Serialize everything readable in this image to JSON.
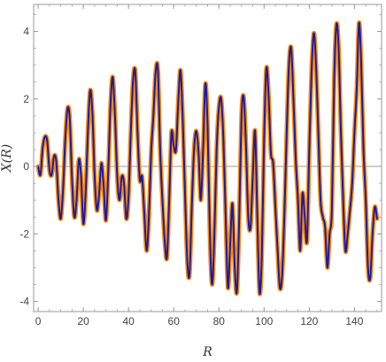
{
  "chart_data": {
    "type": "line",
    "xlabel": "R",
    "ylabel": "X(R)",
    "xlim": [
      -2,
      152
    ],
    "ylim": [
      -4.3,
      4.8
    ],
    "x_ticks": [
      0,
      20,
      40,
      60,
      80,
      100,
      120,
      140
    ],
    "y_ticks": [
      -4,
      -2,
      0,
      2,
      4
    ],
    "x_tick_labels": [
      "0",
      "20",
      "40",
      "60",
      "80",
      "100",
      "120",
      "140"
    ],
    "y_tick_labels": [
      "-4",
      "-2",
      "0",
      "2",
      "4"
    ],
    "x_minor_step": 5,
    "y_minor_step": 0.5,
    "grid": false,
    "frame": true,
    "zero_line": true,
    "colors": {
      "outer_series": "#ff8c00",
      "inner_series": "#1a1aa8",
      "axis": "#9a9a9a",
      "zero_line": "#7a7a7a"
    },
    "series": [
      {
        "color": "#ff8c00",
        "style": "thick",
        "points": [
          [
            0,
            0
          ],
          [
            1,
            -0.25
          ],
          [
            2,
            0.55
          ],
          [
            3,
            0.88
          ],
          [
            4,
            0.75
          ],
          [
            5,
            -0.1
          ],
          [
            6,
            -0.25
          ],
          [
            7,
            0.3
          ],
          [
            8,
            0.15
          ],
          [
            9,
            -1.0
          ],
          [
            10,
            -1.55
          ],
          [
            11,
            -0.7
          ],
          [
            12,
            0.8
          ],
          [
            13,
            1.72
          ],
          [
            14,
            1.4
          ],
          [
            15,
            -0.4
          ],
          [
            16,
            -1.5
          ],
          [
            17,
            -1.0
          ],
          [
            18,
            0.2
          ],
          [
            19,
            -0.3
          ],
          [
            20,
            -1.7
          ],
          [
            21,
            -0.8
          ],
          [
            22,
            1.0
          ],
          [
            23,
            2.25
          ],
          [
            24,
            1.6
          ],
          [
            25,
            -0.3
          ],
          [
            26,
            -1.3
          ],
          [
            27,
            -0.8
          ],
          [
            28,
            0.1
          ],
          [
            29,
            -0.6
          ],
          [
            30,
            -1.6
          ],
          [
            31,
            -0.2
          ],
          [
            32,
            1.8
          ],
          [
            33,
            2.65
          ],
          [
            34,
            1.5
          ],
          [
            35,
            -0.3
          ],
          [
            36,
            -1.0
          ],
          [
            37,
            -0.3
          ],
          [
            38,
            -0.5
          ],
          [
            39,
            -1.55
          ],
          [
            40,
            -0.9
          ],
          [
            41,
            1.0
          ],
          [
            42,
            2.55
          ],
          [
            43,
            2.8
          ],
          [
            44,
            1.0
          ],
          [
            45,
            -0.4
          ],
          [
            46,
            -0.3
          ],
          [
            47,
            -1.4
          ],
          [
            48,
            -2.5
          ],
          [
            49,
            -1.5
          ],
          [
            50,
            0.4
          ],
          [
            51,
            1.5
          ],
          [
            52,
            2.8
          ],
          [
            53,
            2.85
          ],
          [
            54,
            0.5
          ],
          [
            55,
            -1.0
          ],
          [
            56,
            -2.2
          ],
          [
            57,
            -2.7
          ],
          [
            58,
            -1.0
          ],
          [
            59,
            1.0
          ],
          [
            60,
            0.6
          ],
          [
            61,
            0.5
          ],
          [
            62,
            1.9
          ],
          [
            63,
            2.85
          ],
          [
            64,
            1.4
          ],
          [
            65,
            -0.8
          ],
          [
            66,
            -2.8
          ],
          [
            67,
            -3.2
          ],
          [
            68,
            -1.2
          ],
          [
            69,
            0.5
          ],
          [
            70,
            1.05
          ],
          [
            71,
            0.4
          ],
          [
            72,
            -1.0
          ],
          [
            73,
            0.5
          ],
          [
            74,
            2.45
          ],
          [
            75,
            1.2
          ],
          [
            76,
            -2.0
          ],
          [
            77,
            -3.5
          ],
          [
            78,
            -2.0
          ],
          [
            79,
            0.5
          ],
          [
            80,
            1.75
          ],
          [
            81,
            2.0
          ],
          [
            82,
            0.8
          ],
          [
            83,
            -1.5
          ],
          [
            84,
            -3.6
          ],
          [
            85,
            -2.3
          ],
          [
            86,
            -1.1
          ],
          [
            87,
            -3.0
          ],
          [
            88,
            -3.7
          ],
          [
            89,
            -1.5
          ],
          [
            90,
            1.5
          ],
          [
            91,
            2.05
          ],
          [
            92,
            0.6
          ],
          [
            93,
            -1.5
          ],
          [
            94,
            -1.8
          ],
          [
            95,
            -0.3
          ],
          [
            96,
            1.05
          ],
          [
            97,
            -1.5
          ],
          [
            98,
            -3.75
          ],
          [
            99,
            -2.6
          ],
          [
            100,
            0.8
          ],
          [
            101,
            2.9
          ],
          [
            102,
            2.1
          ],
          [
            103,
            0.4
          ],
          [
            104,
            0.1
          ],
          [
            105,
            -1.2
          ],
          [
            106,
            -2.5
          ],
          [
            107,
            -3.6
          ],
          [
            108,
            -3.2
          ],
          [
            109,
            -1.4
          ],
          [
            110,
            1.0
          ],
          [
            111,
            3.0
          ],
          [
            112,
            3.5
          ],
          [
            113,
            2.0
          ],
          [
            114,
            0.2
          ],
          [
            115,
            -1.0
          ],
          [
            116,
            -2.5
          ],
          [
            117,
            -0.8
          ],
          [
            118,
            -1.5
          ],
          [
            119,
            -2.2
          ],
          [
            120,
            0.5
          ],
          [
            121,
            2.8
          ],
          [
            122,
            3.95
          ],
          [
            123,
            3.0
          ],
          [
            124,
            1.0
          ],
          [
            125,
            -1.0
          ],
          [
            126,
            -1.5
          ],
          [
            127,
            -1.8
          ],
          [
            128,
            -3.0
          ],
          [
            129,
            -2.0
          ],
          [
            130,
            -1.3
          ],
          [
            131,
            2.5
          ],
          [
            132,
            4.2
          ],
          [
            133,
            3.5
          ],
          [
            134,
            1.0
          ],
          [
            135,
            -1.0
          ],
          [
            136,
            -2.5
          ],
          [
            137,
            -2.0
          ],
          [
            138,
            -1.3
          ],
          [
            139,
            -0.5
          ],
          [
            140,
            1.0
          ],
          [
            141,
            2.3
          ],
          [
            142,
            4.25
          ],
          [
            143,
            3.0
          ],
          [
            144,
            0.5
          ],
          [
            145,
            -1.0
          ],
          [
            146,
            -3.0
          ],
          [
            147,
            -3.3
          ],
          [
            148,
            -2.0
          ],
          [
            149,
            -1.2
          ],
          [
            150,
            -1.55
          ]
        ]
      },
      {
        "color": "#1a1aa8",
        "style": "thin",
        "points": [
          [
            0,
            0
          ],
          [
            1,
            -0.25
          ],
          [
            2,
            0.55
          ],
          [
            3,
            0.88
          ],
          [
            4,
            0.75
          ],
          [
            5,
            -0.1
          ],
          [
            6,
            -0.25
          ],
          [
            7,
            0.3
          ],
          [
            8,
            0.15
          ],
          [
            9,
            -1.0
          ],
          [
            10,
            -1.55
          ],
          [
            11,
            -0.7
          ],
          [
            12,
            0.8
          ],
          [
            13,
            1.72
          ],
          [
            14,
            1.4
          ],
          [
            15,
            -0.4
          ],
          [
            16,
            -1.5
          ],
          [
            17,
            -1.0
          ],
          [
            18,
            0.2
          ],
          [
            19,
            -0.3
          ],
          [
            20,
            -1.7
          ],
          [
            21,
            -0.8
          ],
          [
            22,
            1.0
          ],
          [
            23,
            2.25
          ],
          [
            24,
            1.6
          ],
          [
            25,
            -0.3
          ],
          [
            26,
            -1.3
          ],
          [
            27,
            -0.8
          ],
          [
            28,
            0.1
          ],
          [
            29,
            -0.6
          ],
          [
            30,
            -1.6
          ],
          [
            31,
            -0.2
          ],
          [
            32,
            1.8
          ],
          [
            33,
            2.65
          ],
          [
            34,
            1.5
          ],
          [
            35,
            -0.3
          ],
          [
            36,
            -1.0
          ],
          [
            37,
            -0.3
          ],
          [
            38,
            -0.5
          ],
          [
            39,
            -1.55
          ],
          [
            40,
            -0.9
          ],
          [
            41,
            1.0
          ],
          [
            42,
            2.55
          ],
          [
            43,
            2.8
          ],
          [
            44,
            1.0
          ],
          [
            45,
            -0.4
          ],
          [
            46,
            -0.3
          ],
          [
            47,
            -1.4
          ],
          [
            48,
            -2.5
          ],
          [
            49,
            -1.5
          ],
          [
            50,
            0.4
          ],
          [
            51,
            1.5
          ],
          [
            52,
            2.8
          ],
          [
            53,
            2.85
          ],
          [
            54,
            0.5
          ],
          [
            55,
            -1.0
          ],
          [
            56,
            -2.2
          ],
          [
            57,
            -2.7
          ],
          [
            58,
            -1.0
          ],
          [
            59,
            1.0
          ],
          [
            60,
            0.6
          ],
          [
            61,
            0.5
          ],
          [
            62,
            1.9
          ],
          [
            63,
            2.85
          ],
          [
            64,
            1.4
          ],
          [
            65,
            -0.8
          ],
          [
            66,
            -2.8
          ],
          [
            67,
            -3.2
          ],
          [
            68,
            -1.2
          ],
          [
            69,
            0.5
          ],
          [
            70,
            1.05
          ],
          [
            71,
            0.4
          ],
          [
            72,
            -1.0
          ],
          [
            73,
            0.5
          ],
          [
            74,
            2.45
          ],
          [
            75,
            1.2
          ],
          [
            76,
            -2.0
          ],
          [
            77,
            -3.5
          ],
          [
            78,
            -2.0
          ],
          [
            79,
            0.5
          ],
          [
            80,
            1.75
          ],
          [
            81,
            2.0
          ],
          [
            82,
            0.8
          ],
          [
            83,
            -1.5
          ],
          [
            84,
            -3.6
          ],
          [
            85,
            -2.3
          ],
          [
            86,
            -1.1
          ],
          [
            87,
            -3.0
          ],
          [
            88,
            -3.7
          ],
          [
            89,
            -1.5
          ],
          [
            90,
            1.5
          ],
          [
            91,
            2.05
          ],
          [
            92,
            0.6
          ],
          [
            93,
            -1.5
          ],
          [
            94,
            -1.8
          ],
          [
            95,
            -0.3
          ],
          [
            96,
            1.05
          ],
          [
            97,
            -1.5
          ],
          [
            98,
            -3.75
          ],
          [
            99,
            -2.6
          ],
          [
            100,
            0.8
          ],
          [
            101,
            2.9
          ],
          [
            102,
            2.1
          ],
          [
            103,
            0.4
          ],
          [
            104,
            0.1
          ],
          [
            105,
            -1.2
          ],
          [
            106,
            -2.5
          ],
          [
            107,
            -3.6
          ],
          [
            108,
            -3.2
          ],
          [
            109,
            -1.4
          ],
          [
            110,
            1.0
          ],
          [
            111,
            3.0
          ],
          [
            112,
            3.5
          ],
          [
            113,
            2.0
          ],
          [
            114,
            0.2
          ],
          [
            115,
            -1.0
          ],
          [
            116,
            -2.5
          ],
          [
            117,
            -0.8
          ],
          [
            118,
            -1.5
          ],
          [
            119,
            -2.2
          ],
          [
            120,
            0.5
          ],
          [
            121,
            2.8
          ],
          [
            122,
            3.95
          ],
          [
            123,
            3.0
          ],
          [
            124,
            1.0
          ],
          [
            125,
            -1.0
          ],
          [
            126,
            -1.5
          ],
          [
            127,
            -1.8
          ],
          [
            128,
            -3.0
          ],
          [
            129,
            -2.0
          ],
          [
            130,
            -1.3
          ],
          [
            131,
            2.5
          ],
          [
            132,
            4.2
          ],
          [
            133,
            3.5
          ],
          [
            134,
            1.0
          ],
          [
            135,
            -1.0
          ],
          [
            136,
            -2.5
          ],
          [
            137,
            -2.0
          ],
          [
            138,
            -1.3
          ],
          [
            139,
            -0.5
          ],
          [
            140,
            1.0
          ],
          [
            141,
            2.3
          ],
          [
            142,
            4.25
          ],
          [
            143,
            3.0
          ],
          [
            144,
            0.5
          ],
          [
            145,
            -1.0
          ],
          [
            146,
            -3.0
          ],
          [
            147,
            -3.3
          ],
          [
            148,
            -2.0
          ],
          [
            149,
            -1.2
          ],
          [
            150,
            -1.55
          ]
        ]
      }
    ]
  }
}
